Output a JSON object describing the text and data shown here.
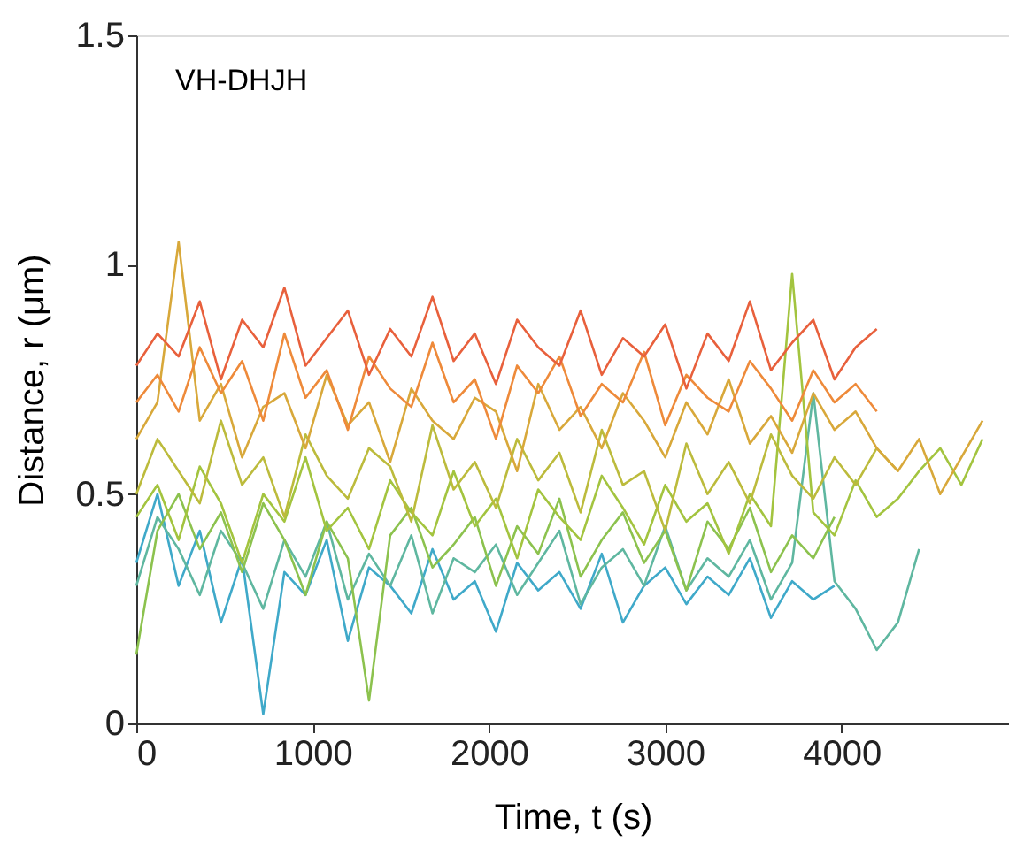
{
  "chart_data": {
    "type": "line",
    "xlabel": "Time, t (s)",
    "ylabel": "Distance, r (μm)",
    "annotations": [
      "VH-DHJH"
    ],
    "x": [
      0,
      120,
      240,
      360,
      480,
      600,
      720,
      840,
      960,
      1080,
      1200,
      1320,
      1440,
      1560,
      1680,
      1800,
      1920,
      2040,
      2160,
      2280,
      2400,
      2520,
      2640,
      2760,
      2880,
      3000,
      3120,
      3240,
      3360,
      3480,
      3600,
      3720,
      3840,
      3960,
      4080,
      4200,
      4320,
      4440,
      4560,
      4680,
      4800
    ],
    "xlim": [
      0,
      4950
    ],
    "xticks": [
      0,
      1000,
      2000,
      3000,
      4000
    ],
    "ylim": [
      0,
      1.5
    ],
    "yticks": [
      0,
      0.5,
      1,
      1.5
    ],
    "grid": false,
    "legend": false,
    "line_style": "solid",
    "marker": "none",
    "series": [
      {
        "color": "#3fa9c9",
        "values": [
          0.35,
          0.5,
          0.3,
          0.42,
          0.22,
          0.36,
          0.02,
          0.33,
          0.28,
          0.4,
          0.18,
          0.34,
          0.3,
          0.24,
          0.38,
          0.27,
          0.31,
          0.2,
          0.35,
          0.29,
          0.33,
          0.25,
          0.37,
          0.22,
          0.3,
          0.34,
          0.26,
          0.32,
          0.28,
          0.36,
          0.23,
          0.31,
          0.27,
          0.3,
          null,
          null,
          null,
          null,
          null,
          null,
          null
        ]
      },
      {
        "color": "#5fb7a0",
        "values": [
          0.3,
          0.45,
          0.38,
          0.28,
          0.42,
          0.35,
          0.25,
          0.4,
          0.32,
          0.44,
          0.27,
          0.37,
          0.3,
          0.41,
          0.24,
          0.36,
          0.33,
          0.39,
          0.28,
          0.35,
          0.42,
          0.26,
          0.34,
          0.38,
          0.3,
          0.43,
          0.29,
          0.36,
          0.32,
          0.4,
          0.27,
          0.35,
          0.72,
          0.31,
          0.25,
          0.16,
          0.22,
          0.38,
          null,
          null,
          null
        ]
      },
      {
        "color": "#8cc24e",
        "values": [
          0.15,
          0.42,
          0.5,
          0.38,
          0.46,
          0.33,
          0.48,
          0.4,
          0.28,
          0.44,
          0.36,
          0.05,
          0.41,
          0.47,
          0.34,
          0.39,
          0.45,
          0.3,
          0.43,
          0.37,
          0.49,
          0.32,
          0.4,
          0.46,
          0.35,
          0.42,
          0.29,
          0.44,
          0.38,
          0.47,
          0.33,
          0.41,
          0.36,
          0.45,
          null,
          null,
          null,
          null,
          null,
          null,
          null
        ]
      },
      {
        "color": "#a3c43f",
        "values": [
          0.45,
          0.52,
          0.4,
          0.56,
          0.48,
          0.35,
          0.5,
          0.44,
          0.58,
          0.42,
          0.47,
          0.38,
          0.53,
          0.46,
          0.41,
          0.55,
          0.43,
          0.49,
          0.36,
          0.51,
          0.45,
          0.4,
          0.54,
          0.47,
          0.39,
          0.52,
          0.44,
          0.48,
          0.37,
          0.5,
          0.43,
          0.98,
          0.46,
          0.41,
          0.53,
          0.45,
          0.49,
          0.55,
          0.6,
          0.52,
          0.62
        ]
      },
      {
        "color": "#bcbb3c",
        "values": [
          0.5,
          0.62,
          0.55,
          0.48,
          0.66,
          0.52,
          0.58,
          0.45,
          0.63,
          0.54,
          0.49,
          0.6,
          0.56,
          0.44,
          0.65,
          0.51,
          0.57,
          0.47,
          0.62,
          0.53,
          0.59,
          0.46,
          0.64,
          0.52,
          0.55,
          0.42,
          0.61,
          0.5,
          0.57,
          0.48,
          0.63,
          0.54,
          0.49,
          0.58,
          0.52,
          0.6,
          0.55,
          null,
          null,
          null,
          null
        ]
      },
      {
        "color": "#d8a83a",
        "values": [
          0.62,
          0.7,
          1.05,
          0.66,
          0.74,
          0.58,
          0.69,
          0.72,
          0.6,
          0.76,
          0.65,
          0.7,
          0.57,
          0.73,
          0.66,
          0.62,
          0.71,
          0.68,
          0.55,
          0.74,
          0.64,
          0.69,
          0.6,
          0.72,
          0.66,
          0.58,
          0.7,
          0.63,
          0.75,
          0.61,
          0.67,
          0.59,
          0.72,
          0.64,
          0.68,
          0.6,
          0.55,
          0.62,
          0.5,
          0.58,
          0.66
        ]
      },
      {
        "color": "#ee8a3a",
        "values": [
          0.7,
          0.76,
          0.68,
          0.82,
          0.72,
          0.79,
          0.66,
          0.85,
          0.71,
          0.77,
          0.64,
          0.8,
          0.73,
          0.69,
          0.83,
          0.7,
          0.75,
          0.62,
          0.78,
          0.72,
          0.8,
          0.67,
          0.74,
          0.7,
          0.81,
          0.65,
          0.76,
          0.71,
          0.68,
          0.79,
          0.73,
          0.66,
          0.77,
          0.7,
          0.74,
          0.68,
          null,
          null,
          null,
          null,
          null
        ]
      },
      {
        "color": "#e8603c",
        "values": [
          0.78,
          0.85,
          0.8,
          0.92,
          0.75,
          0.88,
          0.82,
          0.95,
          0.78,
          0.84,
          0.9,
          0.76,
          0.86,
          0.8,
          0.93,
          0.79,
          0.85,
          0.74,
          0.88,
          0.82,
          0.78,
          0.9,
          0.76,
          0.84,
          0.8,
          0.87,
          0.73,
          0.85,
          0.79,
          0.92,
          0.77,
          0.83,
          0.88,
          0.75,
          0.82,
          0.86,
          null,
          null,
          null,
          null,
          null
        ]
      }
    ]
  }
}
